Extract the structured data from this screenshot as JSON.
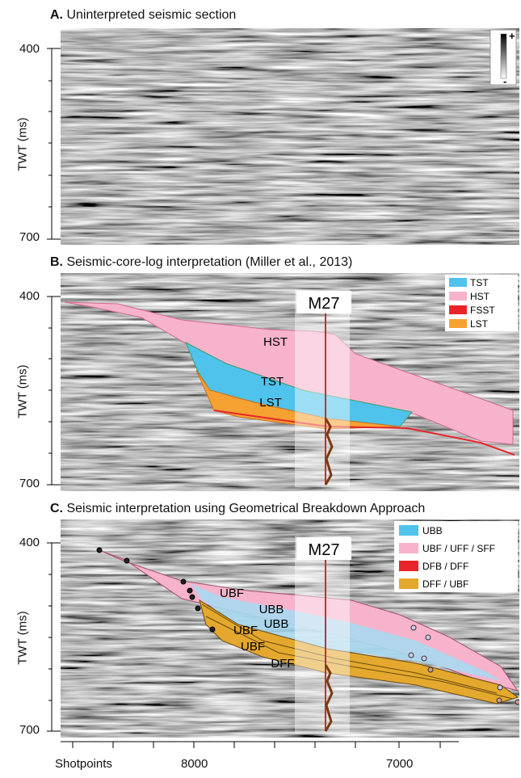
{
  "panels": [
    {
      "letter": "A.",
      "title": "Uninterpreted seismic section"
    },
    {
      "letter": "B.",
      "title": "Seismic-core-log interpretation (Miller et al., 2013)"
    },
    {
      "letter": "C.",
      "title": "Seismic interpretation using Geometrical Breakdown Approach"
    }
  ],
  "axis": {
    "ylabel": "TWT (ms)",
    "yticks": [
      "400",
      "700"
    ],
    "xlabel": "Shotpoints",
    "xticks": [
      "8000",
      "7000"
    ]
  },
  "colorbar": {
    "plus": "+",
    "minus": "-"
  },
  "well": "M27",
  "legendB": [
    {
      "label": "TST",
      "color": "#4fc3ec"
    },
    {
      "label": "HST",
      "color": "#f7b3cc"
    },
    {
      "label": "FSST",
      "color": "#e8242a"
    },
    {
      "label": "LST",
      "color": "#f6a233"
    }
  ],
  "legendC": [
    {
      "label": "UBB",
      "color": "#4fc3ec"
    },
    {
      "label": "UBF / UFF / SFF",
      "color": "#f7b3cc"
    },
    {
      "label": "DFB / DFF",
      "color": "#e8242a"
    },
    {
      "label": "DFF / UBF",
      "color": "#e3a82d"
    }
  ],
  "labelsB": [
    "HST",
    "TST",
    "LST"
  ],
  "labelsC": [
    "UBF",
    "UBB",
    "UBB",
    "UBF",
    "UBF",
    "DFF"
  ]
}
